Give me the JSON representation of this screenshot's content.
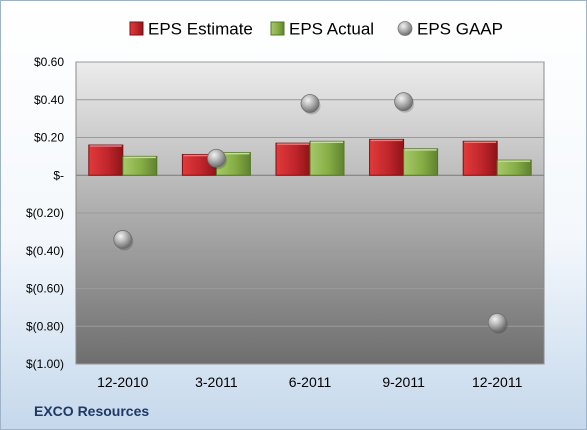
{
  "company": "EXCO Resources",
  "colors": {
    "estimate": "#c0262c",
    "actual": "#8ab04a",
    "gaap": "#9a9a9a"
  },
  "chart_data": {
    "type": "bar",
    "categories": [
      "12-2010",
      "3-2011",
      "6-2011",
      "9-2011",
      "12-2011"
    ],
    "series": [
      {
        "name": "EPS Estimate",
        "kind": "bar",
        "values": [
          0.16,
          0.11,
          0.17,
          0.19,
          0.18
        ]
      },
      {
        "name": "EPS Actual",
        "kind": "bar",
        "values": [
          0.1,
          0.12,
          0.18,
          0.14,
          0.08
        ]
      },
      {
        "name": "EPS GAAP",
        "kind": "scatter",
        "values": [
          -0.34,
          0.09,
          0.38,
          0.39,
          -0.78
        ]
      }
    ],
    "ylim": [
      -1.0,
      0.6
    ],
    "yticks": [
      0.6,
      0.4,
      0.2,
      0,
      -0.2,
      -0.4,
      -0.6,
      -0.8,
      -1.0
    ],
    "ytick_labels": [
      "$0.60",
      "$0.40",
      "$0.20",
      "$-",
      "$(0.20)",
      "$(0.40)",
      "$(0.60)",
      "$(0.80)",
      "$(1.00)"
    ],
    "grid": true,
    "legend_position": "top"
  }
}
